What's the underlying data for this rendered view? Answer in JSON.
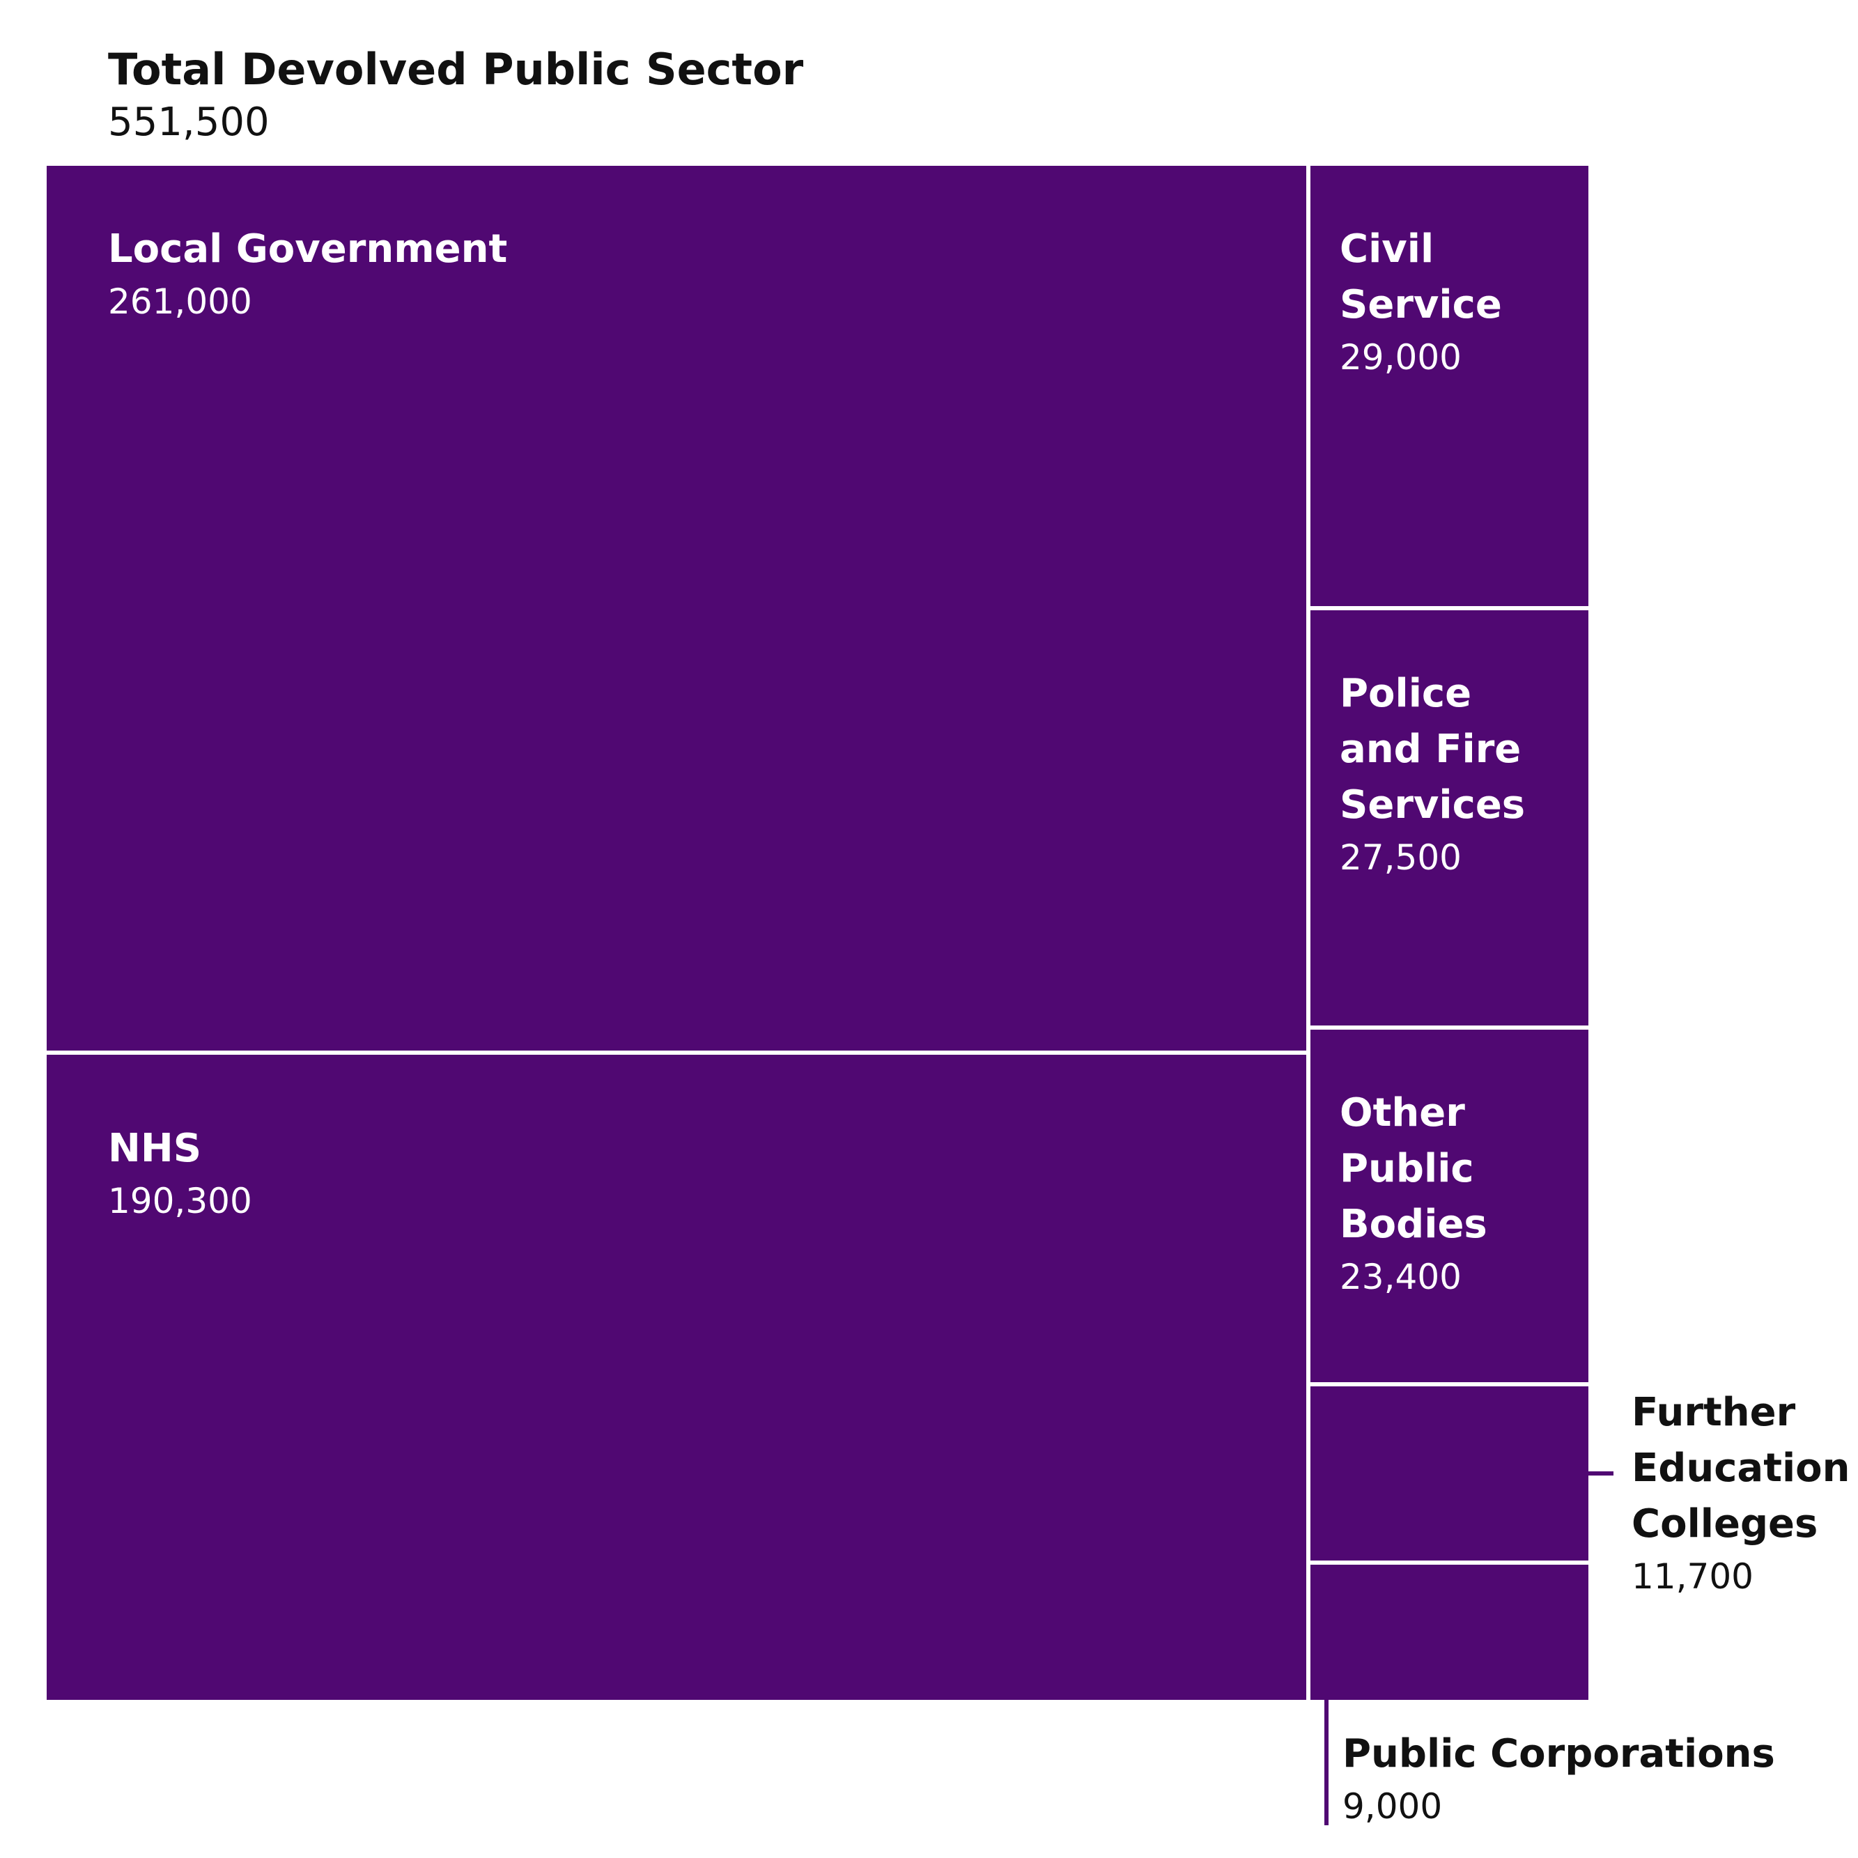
{
  "chart_data": {
    "type": "treemap",
    "title": "Total Devolved Public Sector",
    "total": "551,500",
    "total_value": 551500,
    "colors": {
      "tile": "#500872",
      "border": "#ffffff",
      "text_inside": "#ffffff",
      "text_outside": "#111111"
    },
    "tiles": [
      {
        "id": "local-government",
        "name": "Local Government",
        "value": 261000,
        "value_label": "261,000"
      },
      {
        "id": "nhs",
        "name": "NHS",
        "value": 190300,
        "value_label": "190,300"
      },
      {
        "id": "civil-service",
        "name": "Civil\nService",
        "value": 29000,
        "value_label": "29,000"
      },
      {
        "id": "police-fire",
        "name": "Police\nand Fire\nServices",
        "value": 27500,
        "value_label": "27,500"
      },
      {
        "id": "other-public-bodies",
        "name": "Other\nPublic\nBodies",
        "value": 23400,
        "value_label": "23,400"
      },
      {
        "id": "further-education",
        "name": "Further\nEducation\nColleges",
        "value": 11700,
        "value_label": "11,700"
      },
      {
        "id": "public-corporations",
        "name": "Public Corporations",
        "value": 9000,
        "value_label": "9,000"
      }
    ]
  }
}
